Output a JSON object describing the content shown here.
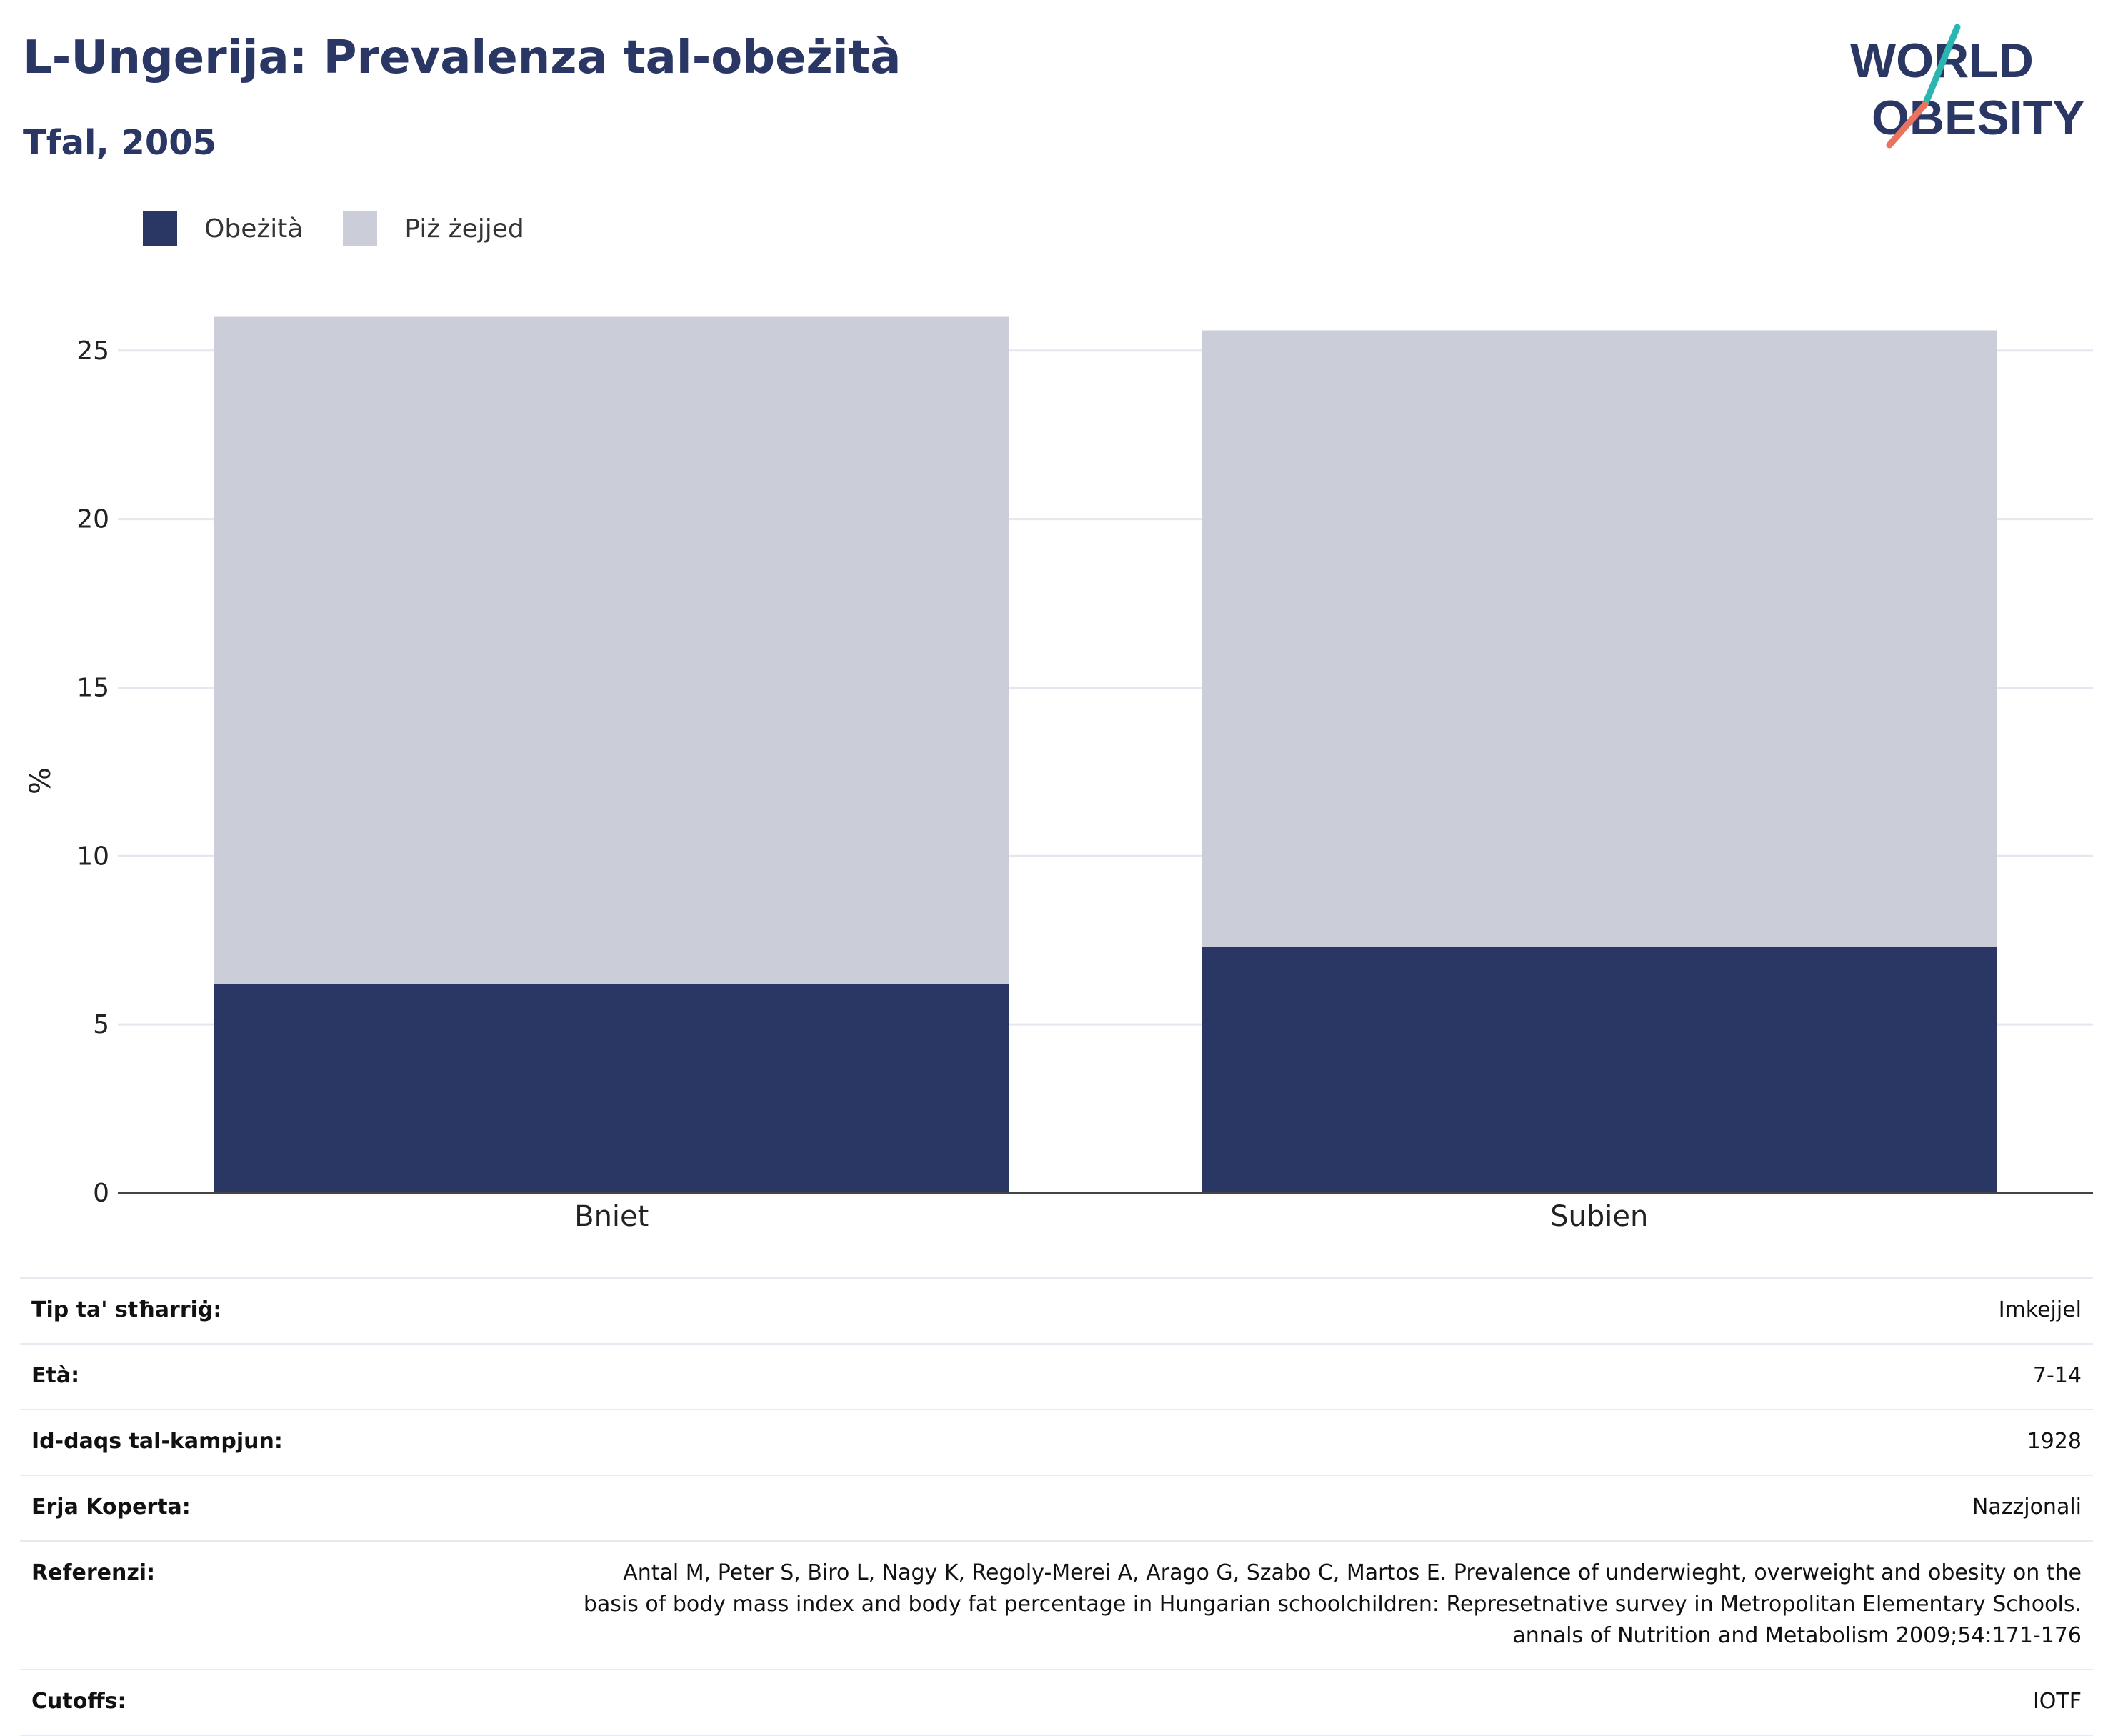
{
  "header": {
    "title": "L-Ungerija: Prevalenza tal-obeżità",
    "subtitle": "Tfal, 2005",
    "logo_line1": "WORLD",
    "logo_line2": "OBESITY"
  },
  "colors": {
    "obesity": "#2a3765",
    "overweight": "#cbcdd8",
    "text": "#2a3765",
    "logo_teal": "#2bb5b0",
    "logo_coral": "#e8735f"
  },
  "legend": [
    {
      "label": "Obeżità",
      "color": "#2a3765"
    },
    {
      "label": "Piż żejjed",
      "color": "#cbcdd8"
    }
  ],
  "chart_data": {
    "type": "bar",
    "stacked": true,
    "categories": [
      "Bniet",
      "Subien"
    ],
    "series": [
      {
        "name": "Obeżità",
        "values": [
          6.2,
          7.3
        ]
      },
      {
        "name": "Piż żejjed",
        "values": [
          19.8,
          18.3
        ]
      }
    ],
    "ylabel": "%",
    "ylim": [
      0,
      26.5
    ],
    "yticks": [
      0,
      5,
      10,
      15,
      20,
      25
    ],
    "grid": true,
    "legend_position": "top-left"
  },
  "info": [
    {
      "label": "Tip ta' stħarriġ:",
      "value": "Imkejjel"
    },
    {
      "label": "Età:",
      "value": "7-14"
    },
    {
      "label": "Id-daqs tal-kampjun:",
      "value": "1928"
    },
    {
      "label": "Erja Koperta:",
      "value": "Nazzjonali"
    },
    {
      "label": "Referenzi:",
      "value": "Antal M, Peter S, Biro L, Nagy K, Regoly-Merei A, Arago G, Szabo C, Martos E. Prevalence of underwieght, overweight and obesity on the basis of body mass index and body fat percentage in Hungarian schoolchildren: Represetnative survey in Metropolitan Elementary Schools. annals of Nutrition and Metabolism 2009;54:171-176"
    },
    {
      "label": "Cutoffs:",
      "value": "IOTF"
    }
  ]
}
